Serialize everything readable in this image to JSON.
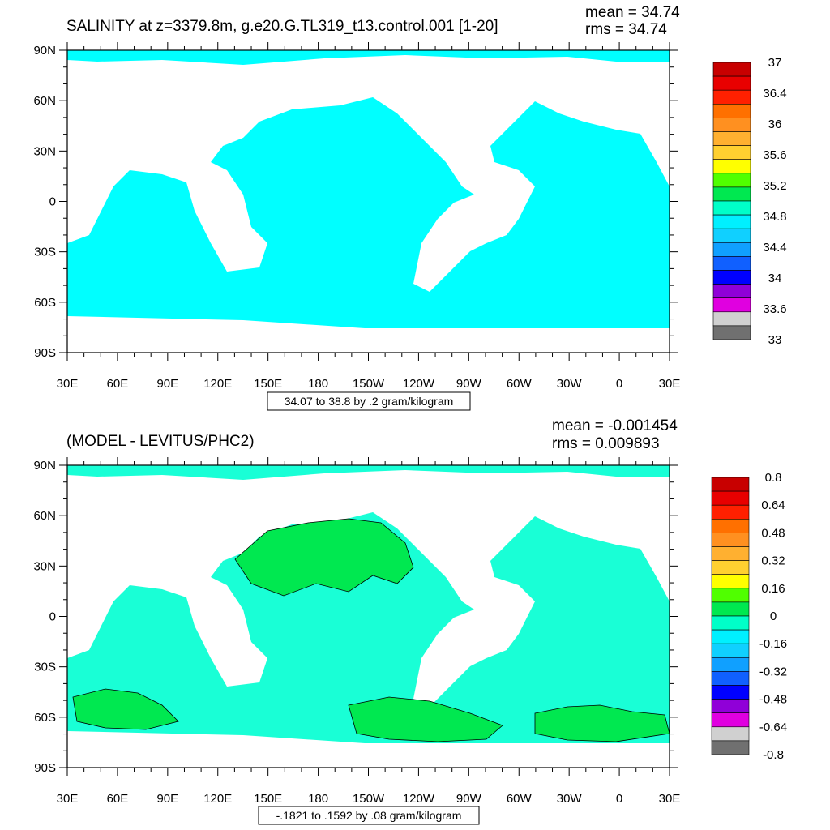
{
  "panels": [
    {
      "title": "SALINITY at z=3379.8m, g.e20.G.TL319_t13.control.001 [1-20]",
      "mean_text": "mean = 34.74",
      "rms_text": "rms = 34.74",
      "range_label": "34.07 to 38.8 by .2 gram/kilogram",
      "ocean_color": "#00ffff"
    },
    {
      "title": "(MODEL - LEVITUS/PHC2)",
      "mean_text": "mean = -0.001454",
      "rms_text": "rms = 0.009893",
      "range_label": "-.1821 to .1592 by .08 gram/kilogram",
      "ocean_color": "#19ffd6"
    }
  ],
  "chart_data": [
    {
      "type": "heatmap",
      "projection": "cylindrical equidistant (lon 30E to 30E)",
      "title": "SALINITY at z=3379.8m, g.e20.G.TL319_t13.control.001 [1-20]",
      "units": "gram/kilogram",
      "mean": 34.74,
      "rms": 34.74,
      "contour_min": 34.07,
      "contour_max": 38.8,
      "contour_interval": 0.2,
      "x_tick_labels": [
        "30E",
        "60E",
        "90E",
        "120E",
        "150E",
        "180",
        "150W",
        "120W",
        "90W",
        "60W",
        "30W",
        "0",
        "30E"
      ],
      "y_tick_labels": [
        "90N",
        "60N",
        "30N",
        "0",
        "30S",
        "60S",
        "90S"
      ],
      "colorbar_labels": [
        "37",
        "36.4",
        "36",
        "35.6",
        "35.2",
        "34.8",
        "34.4",
        "34",
        "33.6",
        "33"
      ],
      "colorbar_colors": [
        "#c80000",
        "#e80000",
        "#ff2000",
        "#ff7000",
        "#ff9020",
        "#ffb030",
        "#ffd030",
        "#ffff00",
        "#50ff00",
        "#00e850",
        "#00ffc8",
        "#00f0ff",
        "#10d0ff",
        "#10a0ff",
        "#1060ff",
        "#0000ff",
        "#9000d8",
        "#e000e0",
        "#d0d0d0",
        "#707070"
      ]
    },
    {
      "type": "heatmap",
      "projection": "cylindrical equidistant (lon 30E to 30E)",
      "title": "(MODEL - LEVITUS/PHC2)",
      "units": "gram/kilogram",
      "mean": -0.001454,
      "rms": 0.009893,
      "contour_min": -0.1821,
      "contour_max": 0.1592,
      "contour_interval": 0.08,
      "x_tick_labels": [
        "30E",
        "60E",
        "90E",
        "120E",
        "150E",
        "180",
        "150W",
        "120W",
        "90W",
        "60W",
        "30W",
        "0",
        "30E"
      ],
      "y_tick_labels": [
        "90N",
        "60N",
        "30N",
        "0",
        "30S",
        "60S",
        "90S"
      ],
      "colorbar_labels": [
        "0.8",
        "0.64",
        "0.48",
        "0.32",
        "0.16",
        "0",
        "-0.16",
        "-0.32",
        "-0.48",
        "-0.64",
        "-0.8"
      ],
      "colorbar_colors": [
        "#c80000",
        "#e80000",
        "#ff2000",
        "#ff7000",
        "#ff9020",
        "#ffb030",
        "#ffd030",
        "#ffff00",
        "#50ff00",
        "#00e850",
        "#00ffc8",
        "#00f0ff",
        "#10d0ff",
        "#10a0ff",
        "#1060ff",
        "#0000ff",
        "#9000d8",
        "#e000e0",
        "#d0d0d0",
        "#707070"
      ]
    }
  ]
}
